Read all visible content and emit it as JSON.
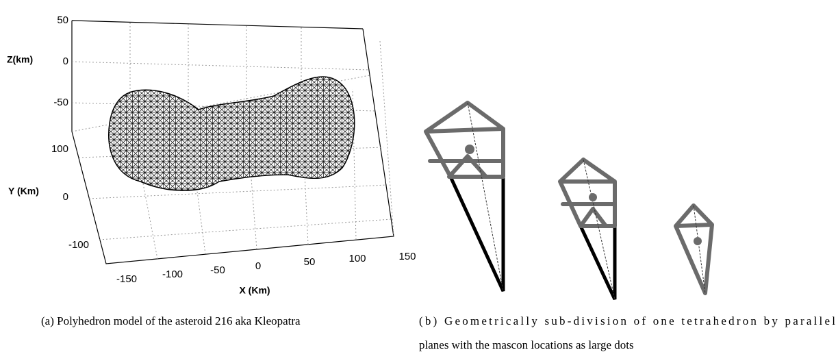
{
  "figure_a": {
    "z_label": "Z(km)",
    "y_label": "Y (Km)",
    "x_label": "X (Km)",
    "z_ticks": [
      50,
      0,
      -50
    ],
    "y_ticks": [
      100,
      0,
      -100
    ],
    "x_ticks": [
      -150,
      -100,
      -50,
      0,
      50,
      100,
      150
    ],
    "caption": "(a) Polyhedron model of the asteroid 216 aka Kleopatra"
  },
  "figure_b": {
    "caption_lines": [
      "(b) Geometrically sub-division of one tetrahedron by parallel",
      "planes with the mascon locations as large dots"
    ]
  }
}
